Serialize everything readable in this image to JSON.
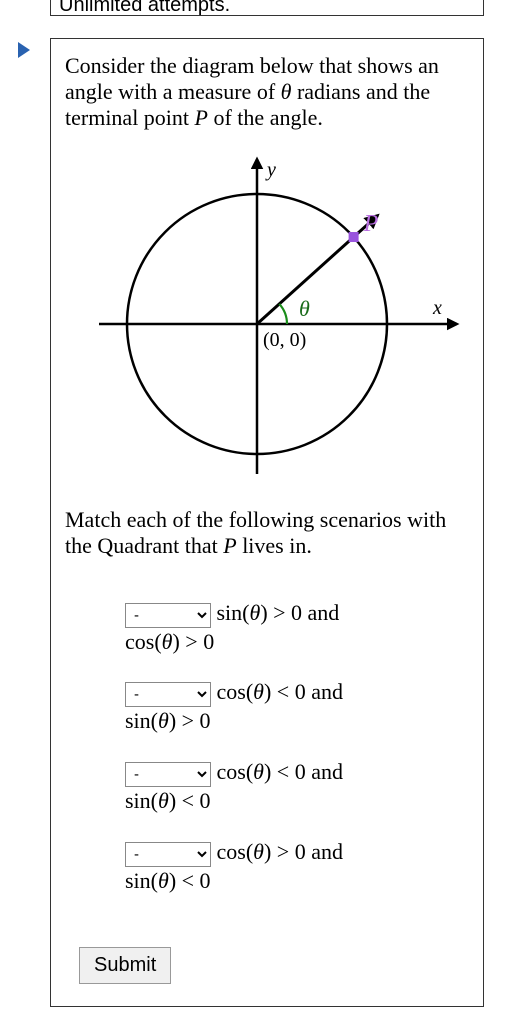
{
  "top_fragment": "Unlimited attempts.",
  "intro": {
    "pre": "Consider the diagram below that shows an angle with a measure of ",
    "theta": "θ",
    "mid": " radians and the terminal point ",
    "P": "P",
    "post": " of the angle."
  },
  "diagram": {
    "y_label": "y",
    "x_label": "x",
    "origin_label": "(0, 0)",
    "theta_label": "θ",
    "P_label": "P",
    "circle_stroke": "#000000",
    "axis_stroke": "#000000",
    "angle_arc_color": "#1a8d1a",
    "P_point_color": "#9955dd",
    "P_label_color": "#b86fe0",
    "theta_label_color": "#1a6b1a",
    "stroke_width": 2.5,
    "angle_deg": 42
  },
  "match_text": {
    "pre": "Match each of the following scenarios with the Quadrant that ",
    "P": "P",
    "post": " lives in."
  },
  "select_placeholder": "-",
  "rows": [
    {
      "line1_html": " sin(<i>θ</i>) > 0 and",
      "line2_html": "cos(<i>θ</i>) > 0"
    },
    {
      "line1_html": " cos(<i>θ</i>) < 0 and",
      "line2_html": "sin(<i>θ</i>) > 0"
    },
    {
      "line1_html": " cos(<i>θ</i>) < 0 and",
      "line2_html": "sin(<i>θ</i>) < 0"
    },
    {
      "line1_html": " cos(<i>θ</i>) > 0 and",
      "line2_html": "sin(<i>θ</i>) < 0"
    }
  ],
  "submit_label": "Submit"
}
